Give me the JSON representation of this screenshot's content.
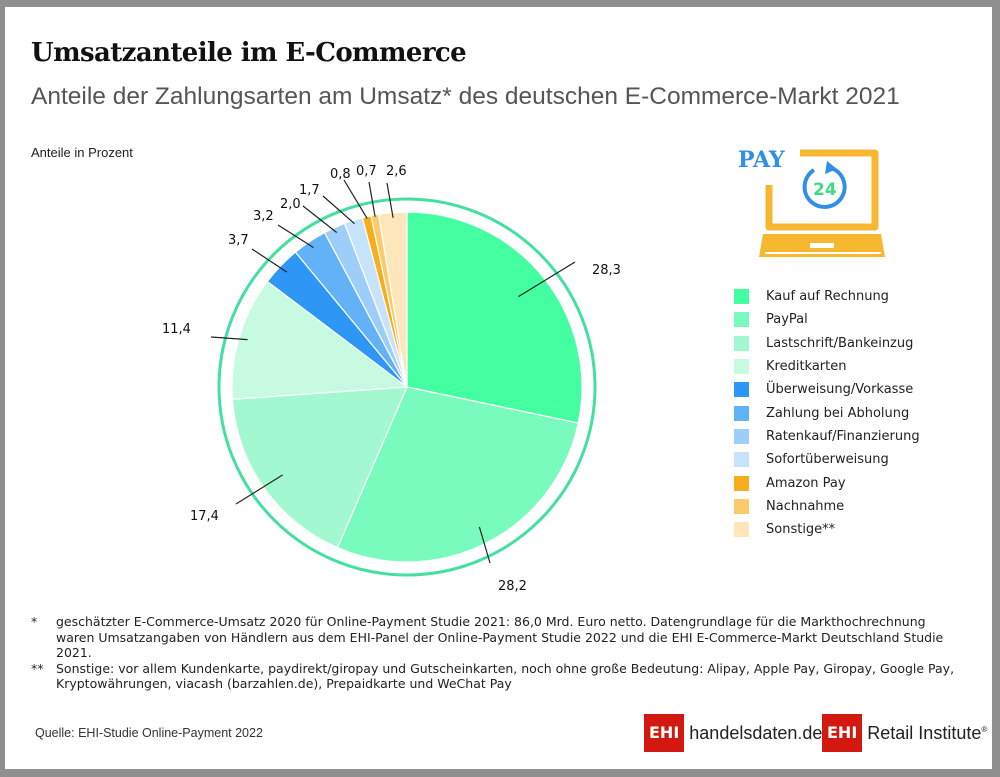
{
  "header": {
    "title": "Umsatzanteile im E-Commerce",
    "subtitle": "Anteile der Zahlungsarten am Umsatz* des deutschen E-Commerce-Markt 2021",
    "unit_label": "Anteile in Prozent"
  },
  "icon": {
    "name": "pay24-laptop-icon",
    "text": "PAY",
    "badge": "24",
    "colors": {
      "laptop": "#f7b731",
      "text": "#2f8fe6",
      "arrow": "#2f8fe6",
      "badge": "#3ddc84"
    }
  },
  "chart_data": {
    "type": "pie",
    "title": "Umsatzanteile im E-Commerce",
    "subtitle": "Anteile der Zahlungsarten am Umsatz* des deutschen E-Commerce-Markt 2021",
    "unit": "Anteile in Prozent",
    "start": "12 o'clock, clockwise",
    "legend_position": "right",
    "slices": [
      {
        "label": "Kauf auf Rechnung",
        "value": 28.3,
        "display": "28,3",
        "color": "#44ffa2"
      },
      {
        "label": "PayPal",
        "value": 28.2,
        "display": "28,2",
        "color": "#79fbbd"
      },
      {
        "label": "Lastschrift/Bankeinzug",
        "value": 17.4,
        "display": "17,4",
        "color": "#a2f9cf"
      },
      {
        "label": "Kreditkarten",
        "value": 11.4,
        "display": "11,4",
        "color": "#c6fbe1"
      },
      {
        "label": "Überweisung/Vorkasse",
        "value": 3.7,
        "display": "3,7",
        "color": "#2e96f5"
      },
      {
        "label": "Zahlung bei Abholung",
        "value": 3.2,
        "display": "3,2",
        "color": "#63b1f7"
      },
      {
        "label": "Ratenkauf/Finanzierung",
        "value": 2.0,
        "display": "2,0",
        "color": "#9dcdf9"
      },
      {
        "label": "Sofortüberweisung",
        "value": 1.7,
        "display": "1,7",
        "color": "#c6e3fb"
      },
      {
        "label": "Amazon Pay",
        "value": 0.8,
        "display": "0,8",
        "color": "#f7ad1e"
      },
      {
        "label": "Nachnahme",
        "value": 0.7,
        "display": "0,7",
        "color": "#fbcb6a"
      },
      {
        "label": "Sonstige**",
        "value": 2.6,
        "display": "2,6",
        "color": "#fde6bb"
      }
    ],
    "ring_color": "#44e0a0"
  },
  "notes": [
    {
      "mark": "*",
      "text": "geschätzter E-Commerce-Umsatz 2020 für Online-Payment Studie 2021: 86,0 Mrd. Euro netto. Datengrundlage für die Markthochrechnung waren Umsatzangaben von Händlern aus dem EHI-Panel der Online-Payment Studie 2022 und die EHI E-Commerce-Markt Deutschland Studie 2021."
    },
    {
      "mark": "**",
      "text": "Sonstige: vor allem Kundenkarte, paydirekt/giropay und Gutscheinkarten, noch ohne große Bedeutung: Alipay, Apple Pay, Giropay, Google Pay, Kryptowährungen, viacash (barzahlen.de), Prepaidkarte und WeChat Pay"
    }
  ],
  "footer": {
    "source": "Quelle: EHI-Studie Online-Payment 2022",
    "logo1": {
      "box": "EHI",
      "text_a": "handelsdaten",
      "dot": ".",
      "text_b": "de"
    },
    "logo2": {
      "box": "EHI",
      "text": "Retail Institute",
      "reg": "®"
    },
    "brand_color": "#d3190f"
  }
}
